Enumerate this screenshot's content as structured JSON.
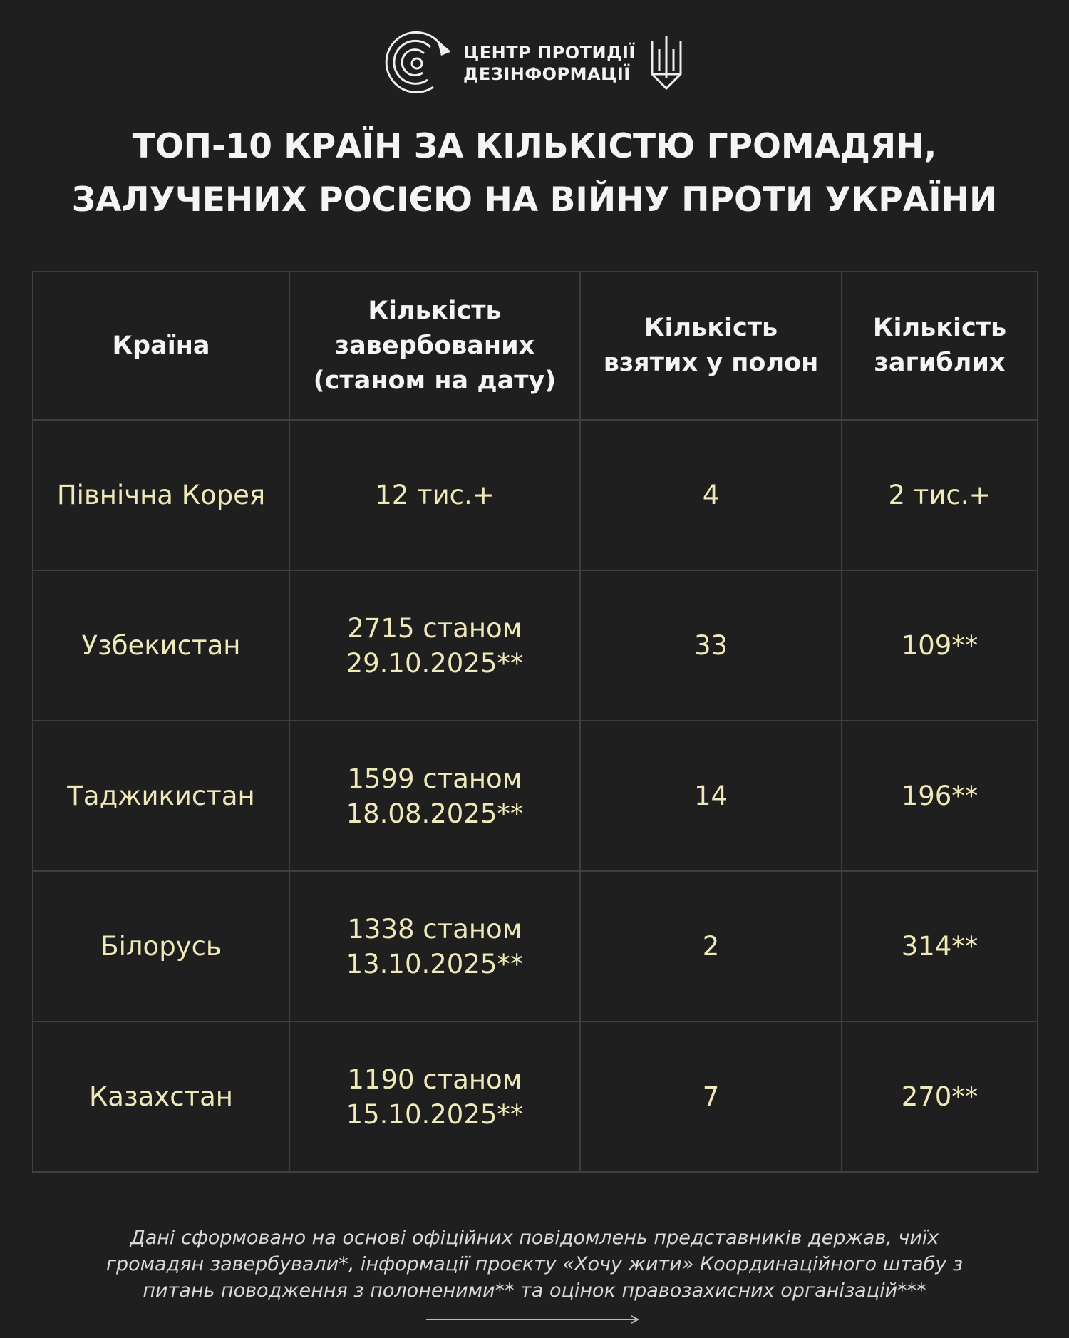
{
  "logo": {
    "line1": "ЦЕНТР ПРОТИДІЇ",
    "line2": "ДЕЗІНФОРМАЦІЇ",
    "emblem": "maze-eagle-icon",
    "coat_of_arms": "trident-icon"
  },
  "title": {
    "line1": "ТОП-10 КРАЇН ЗА КІЛЬКІСТЮ ГРОМАДЯН,",
    "line2": "ЗАЛУЧЕНИХ РОСІЄЮ НА ВІЙНУ ПРОТИ УКРАЇНИ"
  },
  "table": {
    "headers": [
      {
        "l1": "Країна",
        "l2": "",
        "l3": ""
      },
      {
        "l1": "Кількість",
        "l2": "завербованих",
        "l3": "(станом на дату)"
      },
      {
        "l1": "Кількість",
        "l2": "взятих у полон",
        "l3": ""
      },
      {
        "l1": "Кількість",
        "l2": "загиблих",
        "l3": ""
      }
    ],
    "rows": [
      {
        "country": "Північна Корея",
        "recruited_1": "12 тис.+",
        "recruited_2": "",
        "captured": "4",
        "killed": "2 тис.+"
      },
      {
        "country": "Узбекистан",
        "recruited_1": "2715 станом",
        "recruited_2": "29.10.2025**",
        "captured": "33",
        "killed": "109**"
      },
      {
        "country": "Таджикистан",
        "recruited_1": "1599 станом",
        "recruited_2": "18.08.2025**",
        "captured": "14",
        "killed": "196**"
      },
      {
        "country": "Білорусь",
        "recruited_1": "1338 станом",
        "recruited_2": "13.10.2025**",
        "captured": "2",
        "killed": "314**"
      },
      {
        "country": "Казахстан",
        "recruited_1": "1190 станом",
        "recruited_2": "15.10.2025**",
        "captured": "7",
        "killed": "270**"
      }
    ]
  },
  "footer": {
    "line1": "Дані сформовано на основі офіційних повідомлень представників держав, чиїх",
    "line2": "громадян завербували*, інформації проєкту «Хочу жити» Координаційного штабу з",
    "line3": "питань поводження з полоненими** та оцінок правозахисних організацій***"
  },
  "colors": {
    "background": "#1f1f1f",
    "cell_text": "#efe8b8",
    "grid": "#3f3f3f"
  }
}
